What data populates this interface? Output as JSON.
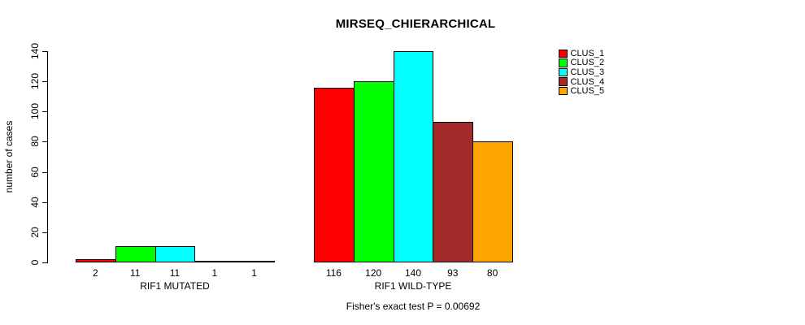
{
  "chart_data": {
    "type": "bar",
    "title": "MIRSEQ_CHIERARCHICAL",
    "subtitle": "Fisher's exact test P = 0.00692",
    "ylabel": "number of cases",
    "xlabel": "",
    "ylim": [
      0,
      140
    ],
    "yticks": [
      0,
      20,
      40,
      60,
      80,
      100,
      120,
      140
    ],
    "grid": false,
    "legend_position": "right",
    "bar_value_labels": true,
    "categories": [
      "RIF1 MUTATED",
      "RIF1 WILD-TYPE"
    ],
    "series": [
      {
        "name": "CLUS_1",
        "color": "#FF0000",
        "values": [
          2,
          116
        ]
      },
      {
        "name": "CLUS_2",
        "color": "#00FF00",
        "values": [
          11,
          120
        ]
      },
      {
        "name": "CLUS_3",
        "color": "#00FFFF",
        "values": [
          11,
          140
        ]
      },
      {
        "name": "CLUS_4",
        "color": "#A52A2A",
        "values": [
          1,
          93
        ]
      },
      {
        "name": "CLUS_5",
        "color": "#FFA500",
        "values": [
          1,
          80
        ]
      }
    ],
    "colors": {
      "background": "#FFFFFF",
      "axis": "#000000",
      "text": "#000000"
    }
  }
}
